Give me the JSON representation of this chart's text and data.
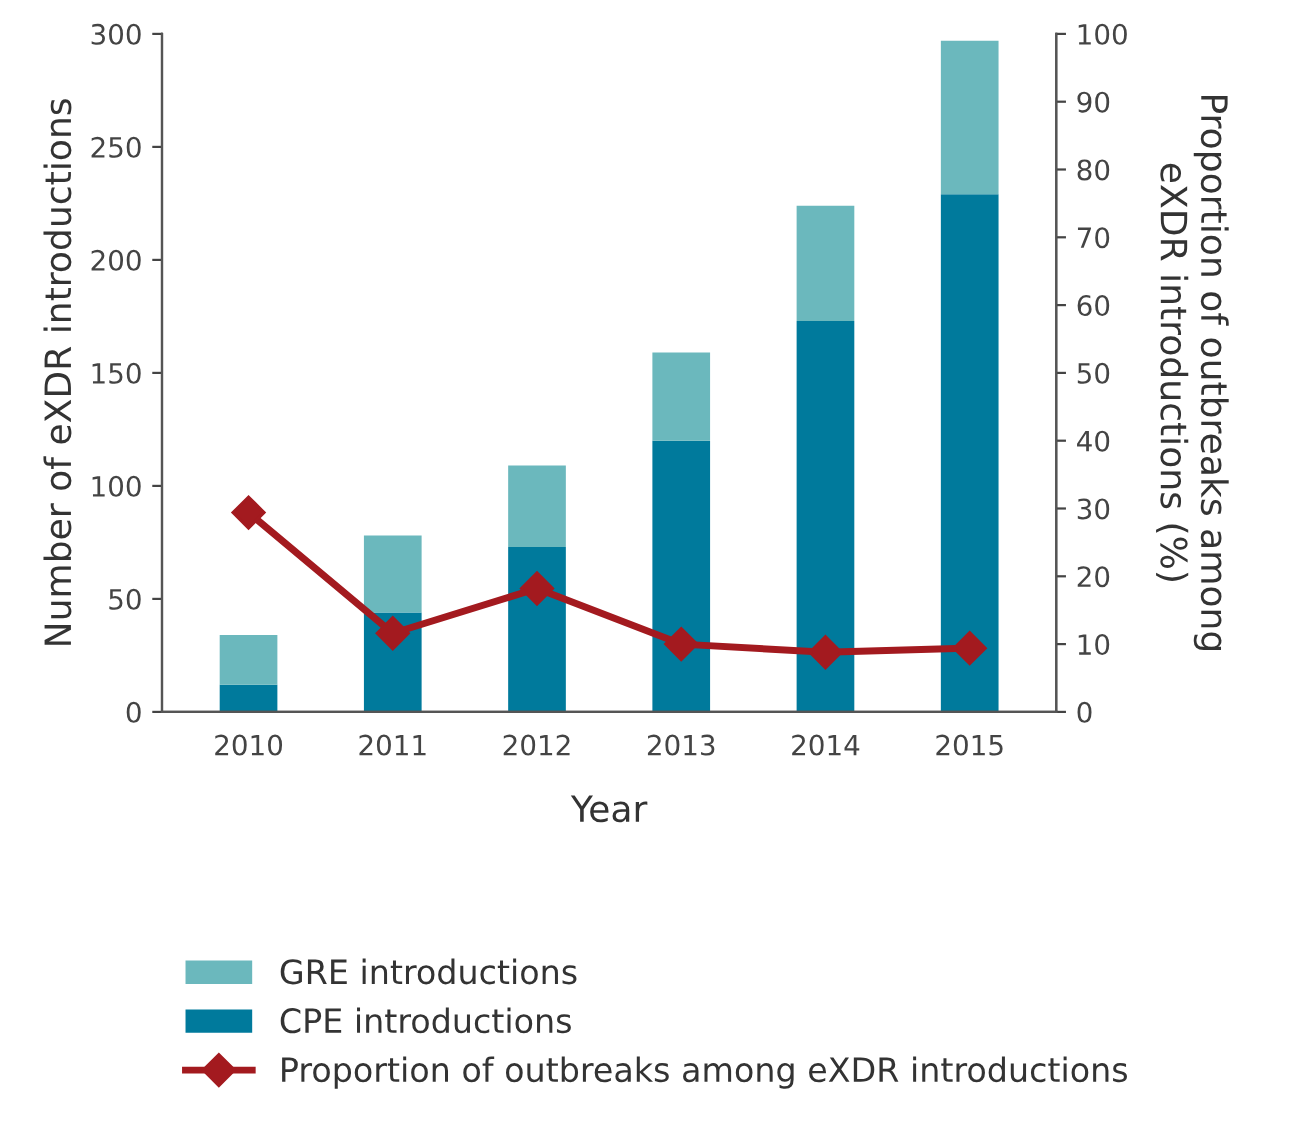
{
  "chart_data": {
    "type": "bar",
    "stacked": true,
    "xlabel": "Year",
    "ylabel": "Number of eXDR introductions",
    "y2label": "Proportion of outbreaks among\neXDR introductions (%)",
    "categories": [
      "2010",
      "2011",
      "2012",
      "2013",
      "2014",
      "2015"
    ],
    "series": [
      {
        "name": "CPE introductions",
        "color": "#007a9c",
        "values": [
          12,
          44,
          73,
          120,
          173,
          229
        ]
      },
      {
        "name": "GRE introductions",
        "color": "#6bb8bd",
        "values": [
          22,
          34,
          36,
          39,
          51,
          68
        ]
      },
      {
        "name": "Proportion of outbreaks among eXDR introductions",
        "type": "line",
        "axis": "y2",
        "color": "#a31a1f",
        "marker": "diamond",
        "values": [
          29.4,
          11.6,
          18.2,
          10,
          8.8,
          9.4
        ]
      }
    ],
    "ylim": [
      0,
      300
    ],
    "yticks": [
      0,
      50,
      100,
      150,
      200,
      250,
      300
    ],
    "y2lim": [
      0,
      100
    ],
    "y2ticks": [
      0,
      10,
      20,
      30,
      40,
      50,
      60,
      70,
      80,
      90,
      100
    ],
    "grid": false,
    "legend": "bottom"
  }
}
